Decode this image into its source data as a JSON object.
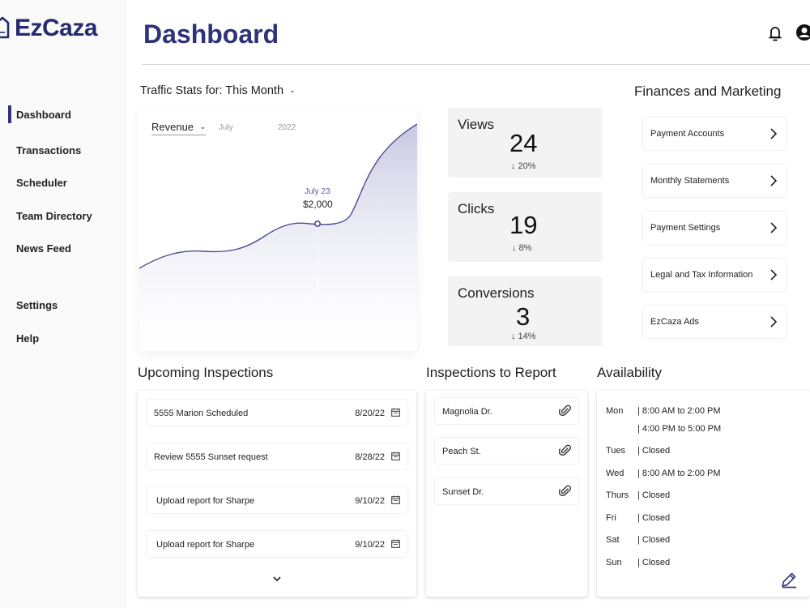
{
  "app": {
    "name": "EzCaza"
  },
  "sidebar": {
    "items": [
      {
        "label": "Dashboard",
        "active": true
      },
      {
        "label": "Transactions"
      },
      {
        "label": "Scheduler"
      },
      {
        "label": "Team Directory"
      },
      {
        "label": "News Feed"
      },
      {
        "label": "Settings"
      },
      {
        "label": "Help"
      }
    ]
  },
  "header": {
    "title": "Dashboard",
    "icons": [
      "bell-icon",
      "user-icon"
    ]
  },
  "traffic": {
    "title": "Traffic Stats for: This Month",
    "metric": "Revenue",
    "month": "July",
    "year": "2022",
    "tooltip": {
      "date": "July 23",
      "value": "$2,000"
    }
  },
  "stats": [
    {
      "label": "Views",
      "value": "24",
      "change": "↓ 20%"
    },
    {
      "label": "Clicks",
      "value": "19",
      "change": "↓ 8%"
    },
    {
      "label": "Conversions",
      "value": "3",
      "change": "↓ 14%"
    }
  ],
  "finances": {
    "title": "Finances and Marketing",
    "items": [
      "Payment Accounts",
      "Monthly Statements",
      "Payment Settings",
      "Legal and Tax Information",
      "EzCaza Ads"
    ]
  },
  "upcoming": {
    "title": "Upcoming Inspections",
    "rows": [
      {
        "text": "5555 Marion Scheduled",
        "date": "8/20/22"
      },
      {
        "text": "Review 5555 Sunset request",
        "date": "8/28/22"
      },
      {
        "text": "Upload report for Sharpe",
        "date": "9/10/22"
      },
      {
        "text": "Upload report for Sharpe",
        "date": "9/10/22"
      }
    ]
  },
  "reports": {
    "title": "Inspections to Report",
    "rows": [
      "Magnolia Dr.",
      "Peach St.",
      "Sunset Dr."
    ]
  },
  "availability": {
    "title": "Availability",
    "rows": [
      {
        "day": "Mon",
        "hours": "| 8:00 AM to 2:00 PM"
      },
      {
        "day": "",
        "hours": "| 4:00 PM to 5:00 PM"
      },
      {
        "day": "Tues",
        "hours": "| Closed"
      },
      {
        "day": "Wed",
        "hours": "| 8:00 AM to 2:00 PM"
      },
      {
        "day": "Thurs",
        "hours": "| Closed"
      },
      {
        "day": "Fri",
        "hours": "| Closed"
      },
      {
        "day": "Sat",
        "hours": "| Closed"
      },
      {
        "day": "Sun",
        "hours": "| Closed"
      }
    ]
  },
  "colors": {
    "brand": "#2e3279",
    "chart_line": "#4b4d8f",
    "chart_fill": "#d5d5ea"
  }
}
